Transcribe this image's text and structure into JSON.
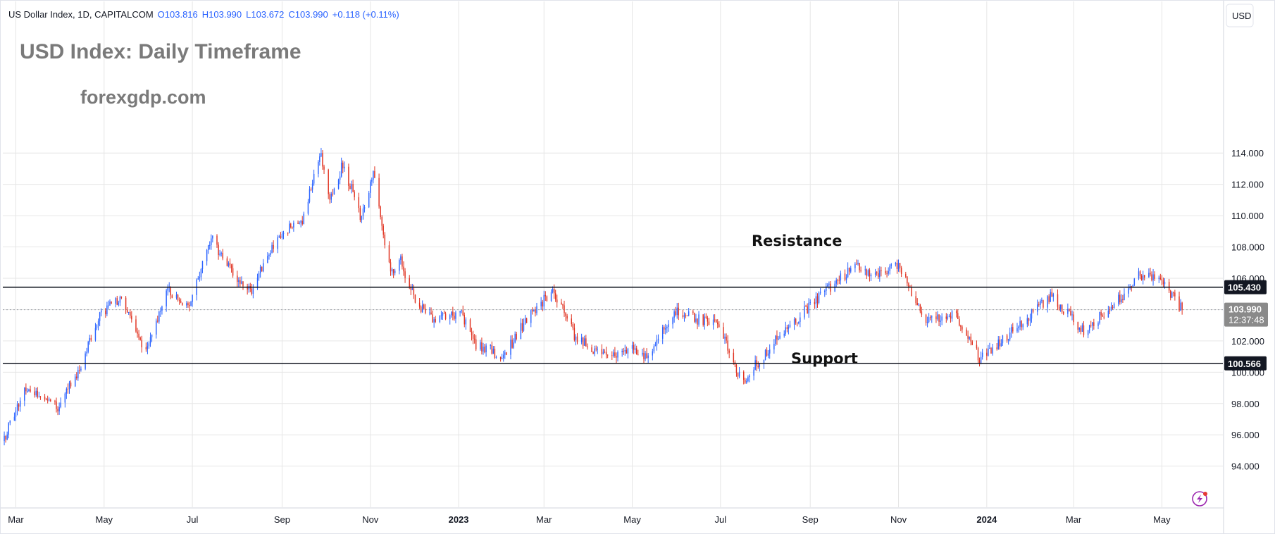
{
  "header": {
    "symbol_line": "US Dollar Index, 1D, CAPITALCOM",
    "open": "O103.816",
    "high": "H103.990",
    "low": "L103.672",
    "close": "C103.990",
    "change": "+0.118 (+0.11%)"
  },
  "overlay": {
    "title": "USD Index: Daily Timeframe",
    "site": "forexgdp.com",
    "resistance_label": "Resistance",
    "support_label": "Support"
  },
  "price_axis": {
    "currency": "USD",
    "resistance_tag": "105.430",
    "support_tag": "100.566",
    "last_price_tag": "103.990",
    "countdown": "12:37:48"
  },
  "colors": {
    "up": "#2962ff",
    "down": "#e0311f",
    "level_line": "#131722",
    "tag_bg": "#131722",
    "last_tag_bg": "#8a8a8a",
    "gridline": "#e6e6e6"
  },
  "icons": [
    "lightning-icon"
  ],
  "chart_data": {
    "type": "candlestick",
    "title": "USD Index: Daily Timeframe",
    "instrument": "US Dollar Index",
    "timeframe": "1D",
    "ylim": [
      92.5,
      119.5
    ],
    "yticks": [
      94,
      96,
      98,
      100,
      102,
      104,
      106,
      108,
      110,
      112,
      114
    ],
    "x_range": [
      "2022-02-20",
      "2024-05-31"
    ],
    "x_ticks": [
      {
        "date": "2022-03-01",
        "label": "Mar"
      },
      {
        "date": "2022-05-01",
        "label": "May"
      },
      {
        "date": "2022-07-01",
        "label": "Jul"
      },
      {
        "date": "2022-09-01",
        "label": "Sep"
      },
      {
        "date": "2022-11-01",
        "label": "Nov"
      },
      {
        "date": "2023-01-01",
        "label": "2023"
      },
      {
        "date": "2023-03-01",
        "label": "Mar"
      },
      {
        "date": "2023-05-01",
        "label": "May"
      },
      {
        "date": "2023-07-01",
        "label": "Jul"
      },
      {
        "date": "2023-09-01",
        "label": "Sep"
      },
      {
        "date": "2023-11-01",
        "label": "Nov"
      },
      {
        "date": "2024-01-01",
        "label": "2024"
      },
      {
        "date": "2024-03-01",
        "label": "Mar"
      },
      {
        "date": "2024-05-01",
        "label": "May"
      }
    ],
    "resistance": 105.43,
    "support": 100.566,
    "last_price": 103.99,
    "close_path": [
      [
        "2022-02-20",
        95.6
      ],
      [
        "2022-03-07",
        98.8
      ],
      [
        "2022-03-15",
        98.6
      ],
      [
        "2022-03-31",
        97.8
      ],
      [
        "2022-04-15",
        100.5
      ],
      [
        "2022-04-28",
        103.7
      ],
      [
        "2022-05-12",
        104.8
      ],
      [
        "2022-05-27",
        101.7
      ],
      [
        "2022-06-02",
        101.9
      ],
      [
        "2022-06-14",
        105.3
      ],
      [
        "2022-06-28",
        104.1
      ],
      [
        "2022-07-14",
        108.6
      ],
      [
        "2022-08-02",
        105.6
      ],
      [
        "2022-08-10",
        105.1
      ],
      [
        "2022-08-29",
        108.8
      ],
      [
        "2022-09-15",
        109.7
      ],
      [
        "2022-09-27",
        114.1
      ],
      [
        "2022-10-04",
        111.0
      ],
      [
        "2022-10-13",
        113.3
      ],
      [
        "2022-10-26",
        109.8
      ],
      [
        "2022-11-03",
        112.6
      ],
      [
        "2022-11-15",
        106.3
      ],
      [
        "2022-11-22",
        107.1
      ],
      [
        "2022-12-02",
        104.5
      ],
      [
        "2022-12-14",
        103.5
      ],
      [
        "2023-01-02",
        103.8
      ],
      [
        "2023-01-13",
        101.8
      ],
      [
        "2023-02-01",
        101.0
      ],
      [
        "2023-02-15",
        103.1
      ],
      [
        "2023-03-07",
        105.3
      ],
      [
        "2023-03-22",
        102.4
      ],
      [
        "2023-04-13",
        100.9
      ],
      [
        "2023-05-01",
        101.6
      ],
      [
        "2023-05-11",
        101.0
      ],
      [
        "2023-05-31",
        104.0
      ],
      [
        "2023-06-14",
        103.4
      ],
      [
        "2023-06-30",
        102.9
      ],
      [
        "2023-07-13",
        99.8
      ],
      [
        "2023-07-18",
        99.6
      ],
      [
        "2023-08-10",
        102.3
      ],
      [
        "2023-09-07",
        104.8
      ],
      [
        "2023-10-03",
        106.9
      ],
      [
        "2023-10-13",
        106.3
      ],
      [
        "2023-11-01",
        106.7
      ],
      [
        "2023-11-20",
        103.4
      ],
      [
        "2023-12-11",
        103.6
      ],
      [
        "2023-12-27",
        100.9
      ],
      [
        "2024-01-15",
        102.3
      ],
      [
        "2024-02-14",
        104.9
      ],
      [
        "2024-03-08",
        102.6
      ],
      [
        "2024-04-01",
        104.6
      ],
      [
        "2024-04-16",
        106.2
      ],
      [
        "2024-05-01",
        105.8
      ],
      [
        "2024-05-15",
        103.99
      ]
    ]
  }
}
